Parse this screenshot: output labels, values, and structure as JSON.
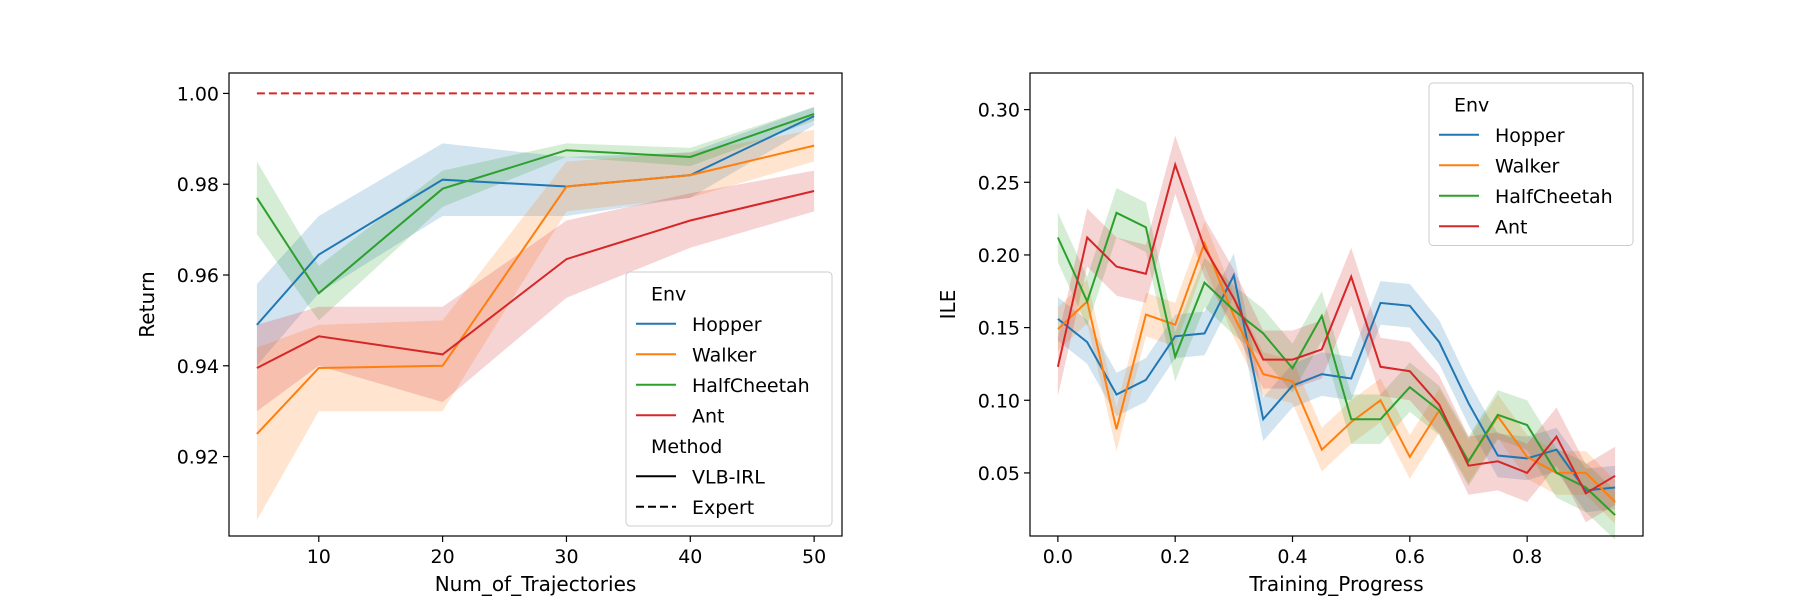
{
  "chart_data": [
    {
      "type": "line",
      "xlabel": "Num_of_Trajectories",
      "ylabel": "Return",
      "xlim": [
        2.75,
        52.25
      ],
      "ylim": [
        0.9025,
        1.0045
      ],
      "xticks": [
        10,
        20,
        30,
        40,
        50
      ],
      "xtick_labels": [
        "10",
        "20",
        "30",
        "40",
        "50"
      ],
      "yticks": [
        0.92,
        0.94,
        0.96,
        0.98,
        1.0
      ],
      "ytick_labels": [
        "0.92",
        "0.94",
        "0.96",
        "0.98",
        "1.00"
      ],
      "legend": {
        "position": "lower-right",
        "env_title": "Env",
        "method_title": "Method",
        "env_entries": [
          "Hopper",
          "Walker",
          "HalfCheetah",
          "Ant"
        ],
        "method_entries": [
          "VLB-IRL",
          "Expert"
        ]
      },
      "x": [
        5,
        10,
        20,
        30,
        40,
        50
      ],
      "series": [
        {
          "name": "Hopper",
          "color": "#1f77b4",
          "values": [
            0.949,
            0.9645,
            0.981,
            0.9795,
            0.982,
            0.995
          ],
          "upper": [
            0.958,
            0.973,
            0.989,
            0.986,
            0.987,
            0.997
          ],
          "lower": [
            0.94,
            0.956,
            0.973,
            0.973,
            0.977,
            0.993
          ]
        },
        {
          "name": "Walker",
          "color": "#ff7f0e",
          "values": [
            0.925,
            0.9395,
            0.94,
            0.9795,
            0.982,
            0.9885
          ],
          "upper": [
            0.944,
            0.949,
            0.95,
            0.985,
            0.987,
            0.992
          ],
          "lower": [
            0.906,
            0.93,
            0.93,
            0.974,
            0.977,
            0.985
          ]
        },
        {
          "name": "HalfCheetah",
          "color": "#2ca02c",
          "values": [
            0.977,
            0.956,
            0.979,
            0.9875,
            0.986,
            0.9955
          ],
          "upper": [
            0.985,
            0.962,
            0.983,
            0.989,
            0.988,
            0.997
          ],
          "lower": [
            0.969,
            0.95,
            0.975,
            0.986,
            0.984,
            0.994
          ]
        },
        {
          "name": "Ant",
          "color": "#d62728",
          "values": [
            0.9395,
            0.9465,
            0.9425,
            0.9635,
            0.972,
            0.9785
          ],
          "upper": [
            0.949,
            0.953,
            0.953,
            0.972,
            0.978,
            0.983
          ],
          "lower": [
            0.93,
            0.94,
            0.932,
            0.955,
            0.966,
            0.974
          ]
        },
        {
          "name": "Expert",
          "color": "#d62728",
          "dashed": true,
          "values": [
            1.0,
            1.0,
            1.0,
            1.0,
            1.0,
            1.0
          ]
        }
      ]
    },
    {
      "type": "line",
      "xlabel": "Training_Progress",
      "ylabel": "ILE",
      "xlim": [
        -0.0475,
        0.9975
      ],
      "ylim": [
        0.0066,
        0.3252
      ],
      "xticks": [
        0.0,
        0.2,
        0.4,
        0.6,
        0.8
      ],
      "xtick_labels": [
        "0.0",
        "0.2",
        "0.4",
        "0.6",
        "0.8"
      ],
      "yticks": [
        0.05,
        0.1,
        0.15,
        0.2,
        0.25,
        0.3
      ],
      "ytick_labels": [
        "0.05",
        "0.10",
        "0.15",
        "0.20",
        "0.25",
        "0.30"
      ],
      "legend": {
        "position": "upper-right",
        "env_title": "Env",
        "env_entries": [
          "Hopper",
          "Walker",
          "HalfCheetah",
          "Ant"
        ]
      },
      "x": [
        0.0,
        0.05,
        0.1,
        0.15,
        0.2,
        0.25,
        0.3,
        0.35,
        0.4,
        0.45,
        0.5,
        0.55,
        0.6,
        0.65,
        0.7,
        0.75,
        0.8,
        0.85,
        0.9,
        0.95
      ],
      "band_halfwidth": [
        0.015,
        0.015,
        0.017,
        0.02
      ],
      "series": [
        {
          "name": "Hopper",
          "color": "#1f77b4",
          "values": [
            0.156,
            0.14,
            0.104,
            0.114,
            0.144,
            0.146,
            0.186,
            0.087,
            0.11,
            0.118,
            0.115,
            0.167,
            0.165,
            0.14,
            0.098,
            0.062,
            0.06,
            0.066,
            0.038,
            0.04
          ]
        },
        {
          "name": "Walker",
          "color": "#ff7f0e",
          "values": [
            0.149,
            0.168,
            0.08,
            0.159,
            0.152,
            0.208,
            0.158,
            0.118,
            0.113,
            0.066,
            0.085,
            0.1,
            0.061,
            0.093,
            0.058,
            0.089,
            0.061,
            0.05,
            0.05,
            0.03
          ]
        },
        {
          "name": "HalfCheetah",
          "color": "#2ca02c",
          "values": [
            0.212,
            0.168,
            0.229,
            0.219,
            0.13,
            0.181,
            0.162,
            0.146,
            0.122,
            0.158,
            0.087,
            0.087,
            0.109,
            0.093,
            0.058,
            0.09,
            0.083,
            0.05,
            0.04,
            0.021
          ]
        },
        {
          "name": "Ant",
          "color": "#d62728",
          "values": [
            0.123,
            0.212,
            0.192,
            0.187,
            0.262,
            0.205,
            0.17,
            0.128,
            0.128,
            0.135,
            0.185,
            0.123,
            0.12,
            0.097,
            0.055,
            0.058,
            0.05,
            0.075,
            0.036,
            0.048
          ]
        }
      ]
    }
  ]
}
